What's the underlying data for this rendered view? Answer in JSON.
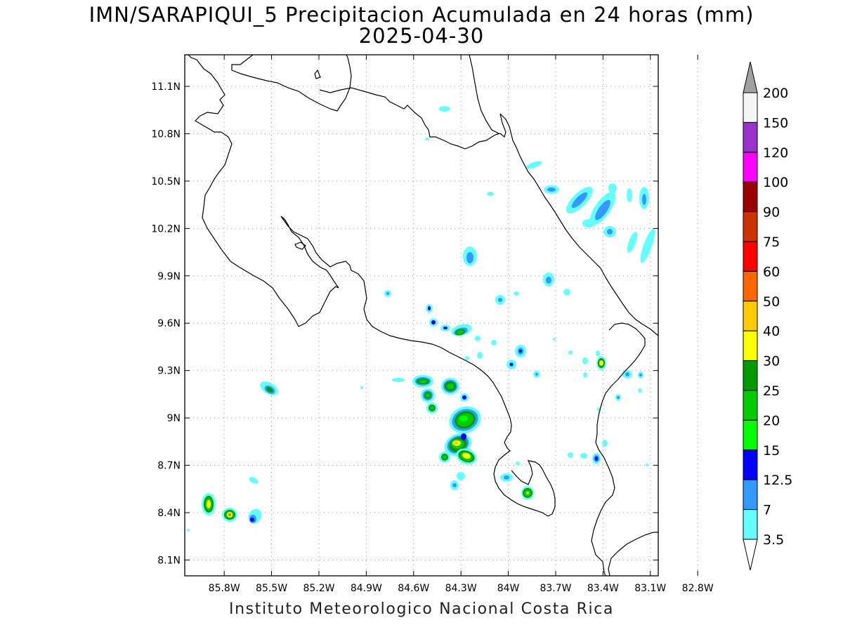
{
  "title": "IMN/SARAPIQUI_5 Precipitacion Acumulada en 24 horas (mm)",
  "date": "2025-04-30",
  "footer": "Instituto Meteorologico Nacional Costa Rica",
  "map": {
    "lon_range": [
      -86.05,
      -83.05
    ],
    "lat_range": [
      8.0,
      11.3
    ],
    "lon_ticks": [
      {
        "value": -85.8,
        "label": "85.8W"
      },
      {
        "value": -85.5,
        "label": "85.5W"
      },
      {
        "value": -85.2,
        "label": "85.2W"
      },
      {
        "value": -84.9,
        "label": "84.9W"
      },
      {
        "value": -84.6,
        "label": "84.6W"
      },
      {
        "value": -84.3,
        "label": "84.3W"
      },
      {
        "value": -84.0,
        "label": "84W"
      },
      {
        "value": -83.7,
        "label": "83.7W"
      },
      {
        "value": -83.4,
        "label": "83.4W"
      },
      {
        "value": -83.1,
        "label": "83.1W"
      },
      {
        "value": -82.8,
        "label": "82.8W"
      }
    ],
    "lat_ticks": [
      {
        "value": 11.1,
        "label": "11.1N"
      },
      {
        "value": 10.8,
        "label": "10.8N"
      },
      {
        "value": 10.5,
        "label": "10.5N"
      },
      {
        "value": 10.2,
        "label": "10.2N"
      },
      {
        "value": 9.9,
        "label": "9.9N"
      },
      {
        "value": 9.6,
        "label": "9.6N"
      },
      {
        "value": 9.3,
        "label": "9.3N"
      },
      {
        "value": 9.0,
        "label": "9N"
      },
      {
        "value": 8.7,
        "label": "8.7N"
      },
      {
        "value": 8.4,
        "label": "8.4N"
      },
      {
        "value": 8.1,
        "label": "8.1N"
      }
    ],
    "grid": true
  },
  "legend": {
    "levels": [
      {
        "label": "200",
        "color": "#f5f5f5"
      },
      {
        "label": "150",
        "color": "#9933cc"
      },
      {
        "label": "120",
        "color": "#ff00ff"
      },
      {
        "label": "100",
        "color": "#990000"
      },
      {
        "label": "90",
        "color": "#cc3300"
      },
      {
        "label": "75",
        "color": "#ff0000"
      },
      {
        "label": "60",
        "color": "#ff6600"
      },
      {
        "label": "50",
        "color": "#ffcc00"
      },
      {
        "label": "40",
        "color": "#ffff00"
      },
      {
        "label": "30",
        "color": "#009900"
      },
      {
        "label": "25",
        "color": "#00cc00"
      },
      {
        "label": "20",
        "color": "#00ff00"
      },
      {
        "label": "15",
        "color": "#0000ff"
      },
      {
        "label": "12.5",
        "color": "#3399ff"
      },
      {
        "label": "7",
        "color": "#66ffff"
      },
      {
        "label": "3.5",
        "color": "#ffffff"
      }
    ],
    "over_color": "#a0a0a0"
  },
  "colors": {
    "c3_5": "#66ffff",
    "c7": "#3399ff",
    "c12_5": "#0000ff",
    "c15": "#00ff00",
    "c20": "#00cc00",
    "c25": "#009900",
    "c30": "#ffff00",
    "c40": "#ffcc00",
    "coast": "#000000",
    "grid": "#9a9a9a"
  }
}
